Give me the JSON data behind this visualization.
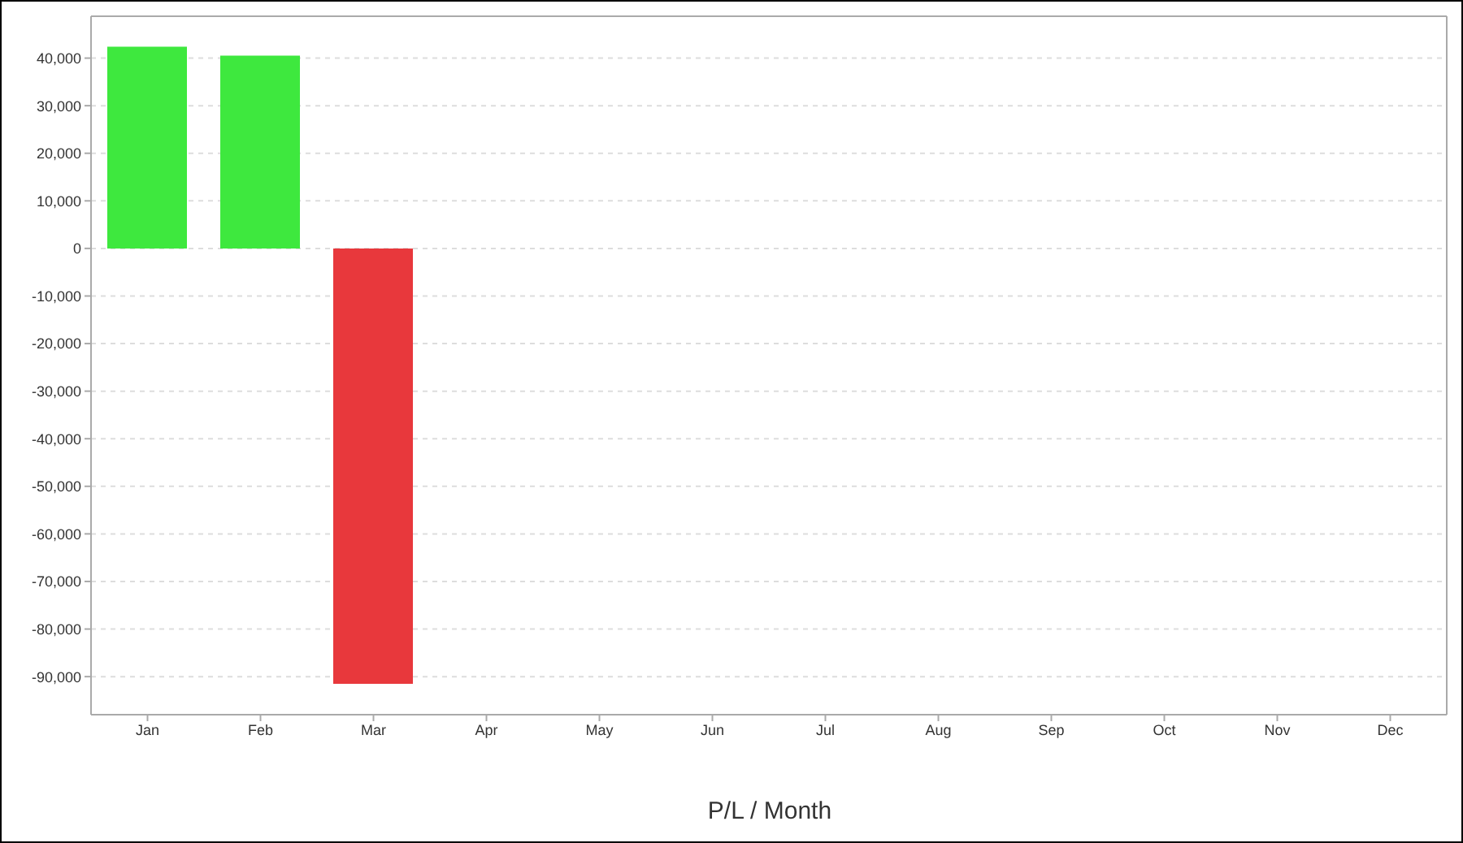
{
  "chart_data": {
    "type": "bar",
    "xlabel": "P/L / Month",
    "categories": [
      "Jan",
      "Feb",
      "Mar",
      "Apr",
      "May",
      "Jun",
      "Jul",
      "Aug",
      "Sep",
      "Oct",
      "Nov",
      "Dec"
    ],
    "values": [
      42400,
      40500,
      -91500,
      null,
      null,
      null,
      null,
      null,
      null,
      null,
      null,
      null
    ],
    "colors": [
      "#3ee83e",
      "#3ee83e",
      "#e8383c",
      null,
      null,
      null,
      null,
      null,
      null,
      null,
      null,
      null
    ],
    "ylim": [
      -98000,
      48800
    ],
    "yticks": [
      {
        "value": -90000,
        "label": "-90,000"
      },
      {
        "value": -80000,
        "label": "-80,000"
      },
      {
        "value": -70000,
        "label": "-70,000"
      },
      {
        "value": -60000,
        "label": "-60,000"
      },
      {
        "value": -50000,
        "label": "-50,000"
      },
      {
        "value": -40000,
        "label": "-40,000"
      },
      {
        "value": -30000,
        "label": "-30,000"
      },
      {
        "value": -20000,
        "label": "-20,000"
      },
      {
        "value": -10000,
        "label": "-10,000"
      },
      0,
      {
        "value": 10000,
        "label": "10,000"
      },
      {
        "value": 20000,
        "label": "20,000"
      },
      {
        "value": 30000,
        "label": "30,000"
      },
      {
        "value": 40000,
        "label": "40,000"
      }
    ],
    "grid": "y"
  }
}
